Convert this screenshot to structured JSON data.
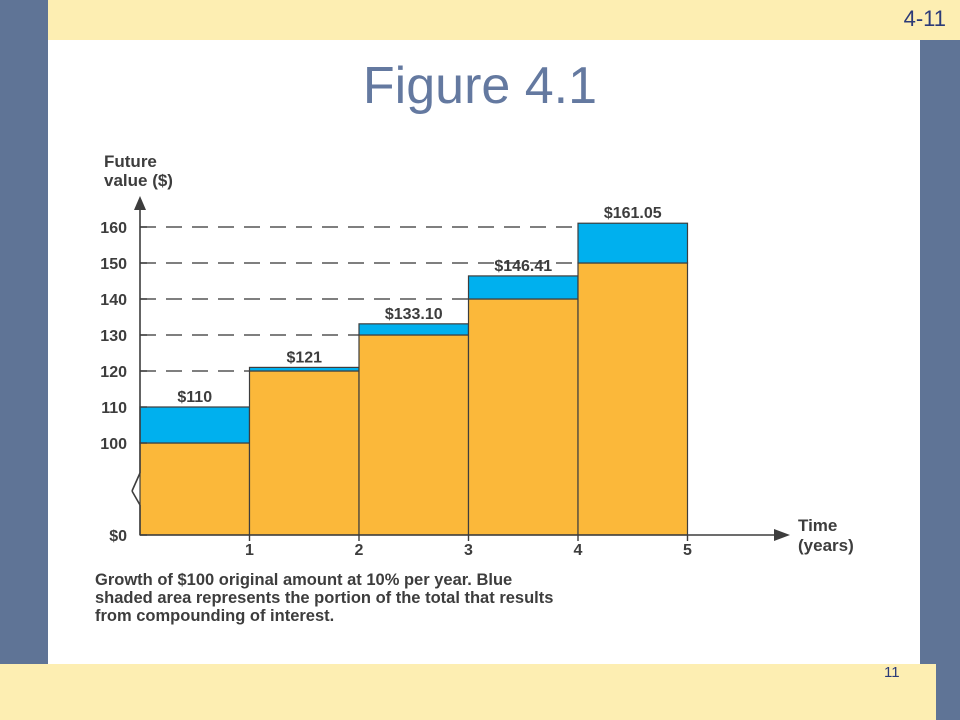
{
  "slide": {
    "slide_id": "4-11",
    "title": "Figure 4.1",
    "page_number": "11"
  },
  "colors": {
    "background_accent": "#fdeeb2",
    "side_bar": "#5f7496",
    "principal_fill": "#fbb83a",
    "interest_fill": "#00b0ee",
    "title_color": "#6479a0"
  },
  "chart_data": {
    "type": "bar",
    "title": "",
    "ylabel_lines": [
      "Future",
      "value ($)"
    ],
    "xlabel_lines": [
      "Time",
      "(years)"
    ],
    "y_ticks": [
      {
        "value": 0,
        "label": "$0"
      },
      {
        "value": 100,
        "label": "100"
      },
      {
        "value": 110,
        "label": "110"
      },
      {
        "value": 120,
        "label": "120"
      },
      {
        "value": 130,
        "label": "130"
      },
      {
        "value": 140,
        "label": "140"
      },
      {
        "value": 150,
        "label": "150"
      },
      {
        "value": 160,
        "label": "160"
      }
    ],
    "x_ticks": [
      "1",
      "2",
      "3",
      "4",
      "5"
    ],
    "ylim": [
      0,
      160
    ],
    "axis_break": true,
    "gridlines": "dashed guides at 120, 130, 140, 150, 160",
    "bars": [
      {
        "year": 1,
        "base": 100,
        "total": 110,
        "label": "$110"
      },
      {
        "year": 2,
        "base": 120,
        "total": 121,
        "label": "$121"
      },
      {
        "year": 3,
        "base": 130,
        "total": 133.1,
        "label": "$133.10"
      },
      {
        "year": 4,
        "base": 140,
        "total": 146.41,
        "label": "$146.41"
      },
      {
        "year": 5,
        "base": 150,
        "total": 161.05,
        "label": "$161.05"
      }
    ],
    "caption_lines": [
      "Growth of $100 original amount at 10% per year. Blue",
      "shaded area represents the portion of the total that results",
      "from compounding of interest."
    ]
  }
}
